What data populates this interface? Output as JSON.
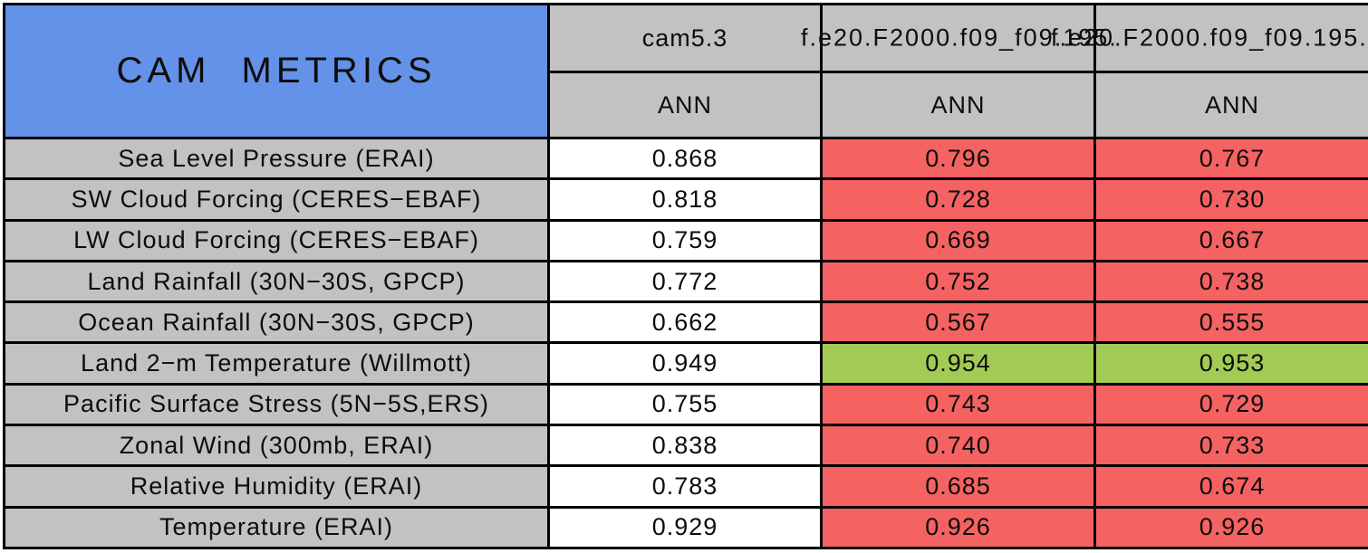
{
  "table": {
    "title": "CAM METRICS",
    "columns": [
      {
        "name": "cam5.3",
        "season": "ANN"
      },
      {
        "name": "f.e20.F2000.f09_f09.195.",
        "season": "ANN"
      },
      {
        "name": "f.e20.F2000.f09_f09.195.",
        "season": "ANN"
      }
    ],
    "rows": [
      {
        "label": "Sea Level Pressure (ERAI)",
        "values": [
          "0.868",
          "0.796",
          "0.767"
        ],
        "status": [
          "base",
          "worse",
          "worse"
        ]
      },
      {
        "label": "SW Cloud Forcing (CERES−EBAF)",
        "values": [
          "0.818",
          "0.728",
          "0.730"
        ],
        "status": [
          "base",
          "worse",
          "worse"
        ]
      },
      {
        "label": "LW Cloud Forcing (CERES−EBAF)",
        "values": [
          "0.759",
          "0.669",
          "0.667"
        ],
        "status": [
          "base",
          "worse",
          "worse"
        ]
      },
      {
        "label": "Land Rainfall (30N−30S, GPCP)",
        "values": [
          "0.772",
          "0.752",
          "0.738"
        ],
        "status": [
          "base",
          "worse",
          "worse"
        ]
      },
      {
        "label": "Ocean Rainfall (30N−30S, GPCP)",
        "values": [
          "0.662",
          "0.567",
          "0.555"
        ],
        "status": [
          "base",
          "worse",
          "worse"
        ]
      },
      {
        "label": "Land 2−m Temperature (Willmott)",
        "values": [
          "0.949",
          "0.954",
          "0.953"
        ],
        "status": [
          "base",
          "better",
          "better"
        ]
      },
      {
        "label": "Pacific Surface Stress (5N−5S,ERS)",
        "values": [
          "0.755",
          "0.743",
          "0.729"
        ],
        "status": [
          "base",
          "worse",
          "worse"
        ]
      },
      {
        "label": "Zonal Wind (300mb, ERAI)",
        "values": [
          "0.838",
          "0.740",
          "0.733"
        ],
        "status": [
          "base",
          "worse",
          "worse"
        ]
      },
      {
        "label": "Relative Humidity (ERAI)",
        "values": [
          "0.783",
          "0.685",
          "0.674"
        ],
        "status": [
          "base",
          "worse",
          "worse"
        ]
      },
      {
        "label": "Temperature (ERAI)",
        "values": [
          "0.929",
          "0.926",
          "0.926"
        ],
        "status": [
          "base",
          "worse",
          "worse"
        ]
      }
    ]
  },
  "colors": {
    "title_bg": "#6492e9",
    "header_bg": "#c2c2c2",
    "base_bg": "#ffffff",
    "worse_bg": "#f56262",
    "better_bg": "#a2cb55",
    "grid": "#000000"
  },
  "chart_data": {
    "type": "table",
    "title": "CAM METRICS",
    "columns": [
      "cam5.3 (ANN)",
      "f.e20.F2000.f09_f09.195. (ANN)",
      "f.e20.F2000.f09_f09.195. (ANN)"
    ],
    "rows": [
      {
        "metric": "Sea Level Pressure (ERAI)",
        "values": [
          0.868,
          0.796,
          0.767
        ]
      },
      {
        "metric": "SW Cloud Forcing (CERES-EBAF)",
        "values": [
          0.818,
          0.728,
          0.73
        ]
      },
      {
        "metric": "LW Cloud Forcing (CERES-EBAF)",
        "values": [
          0.759,
          0.669,
          0.667
        ]
      },
      {
        "metric": "Land Rainfall (30N-30S, GPCP)",
        "values": [
          0.772,
          0.752,
          0.738
        ]
      },
      {
        "metric": "Ocean Rainfall (30N-30S, GPCP)",
        "values": [
          0.662,
          0.567,
          0.555
        ]
      },
      {
        "metric": "Land 2-m Temperature (Willmott)",
        "values": [
          0.949,
          0.954,
          0.953
        ]
      },
      {
        "metric": "Pacific Surface Stress (5N-5S,ERS)",
        "values": [
          0.755,
          0.743,
          0.729
        ]
      },
      {
        "metric": "Zonal Wind (300mb, ERAI)",
        "values": [
          0.838,
          0.74,
          0.733
        ]
      },
      {
        "metric": "Relative Humidity (ERAI)",
        "values": [
          0.783,
          0.685,
          0.674
        ]
      },
      {
        "metric": "Temperature (ERAI)",
        "values": [
          0.929,
          0.926,
          0.926
        ]
      }
    ],
    "cell_highlight": "red = worse than cam5.3 baseline, green = better than cam5.3 baseline"
  }
}
